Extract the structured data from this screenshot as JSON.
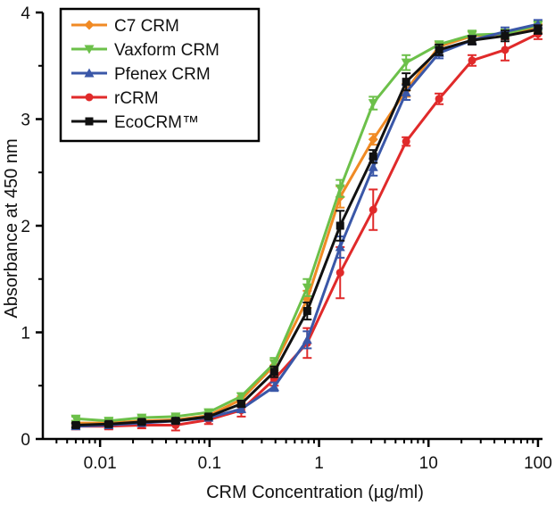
{
  "chart_data": {
    "type": "line",
    "xscale": "log",
    "xlabel": "CRM Concentration (µg/ml)",
    "ylabel": "Absorbance at 450 nm",
    "xlim": [
      0.003,
      110
    ],
    "ylim": [
      0,
      4
    ],
    "xticks": [
      {
        "value": 0.01,
        "label": "0.01"
      },
      {
        "value": 0.1,
        "label": "0.1"
      },
      {
        "value": 1,
        "label": "1"
      },
      {
        "value": 10,
        "label": "10"
      },
      {
        "value": 100,
        "label": "100"
      }
    ],
    "yticks": [
      {
        "value": 0,
        "label": "0"
      },
      {
        "value": 1,
        "label": "1"
      },
      {
        "value": 2,
        "label": "2"
      },
      {
        "value": 3,
        "label": "3"
      },
      {
        "value": 4,
        "label": "4"
      }
    ],
    "legend_position": "top-left",
    "x": [
      0.006,
      0.012,
      0.024,
      0.049,
      0.098,
      0.195,
      0.39,
      0.78,
      1.56,
      3.125,
      6.25,
      12.5,
      25,
      50,
      100
    ],
    "series": [
      {
        "name": "C7 CRM",
        "color": "#f08a24",
        "marker": "diamond",
        "values": [
          0.15,
          0.15,
          0.17,
          0.18,
          0.22,
          0.37,
          0.69,
          1.31,
          2.27,
          2.81,
          3.27,
          3.68,
          3.78,
          3.8,
          3.85
        ],
        "errors": [
          0.02,
          0.02,
          0.02,
          0.02,
          0.02,
          0.03,
          0.05,
          0.08,
          0.1,
          0.05,
          0.06,
          0.04,
          0.04,
          0.04,
          0.04
        ]
      },
      {
        "name": "Vaxform CRM",
        "color": "#6cc04a",
        "marker": "triangle-down",
        "values": [
          0.19,
          0.17,
          0.2,
          0.21,
          0.25,
          0.4,
          0.71,
          1.42,
          2.35,
          3.15,
          3.53,
          3.7,
          3.79,
          3.8,
          3.88
        ],
        "errors": [
          0.02,
          0.02,
          0.02,
          0.02,
          0.02,
          0.03,
          0.05,
          0.08,
          0.08,
          0.06,
          0.07,
          0.03,
          0.04,
          0.04,
          0.04
        ]
      },
      {
        "name": "Pfenex CRM",
        "color": "#3a57a8",
        "marker": "triangle-up",
        "values": [
          0.12,
          0.13,
          0.15,
          0.17,
          0.2,
          0.28,
          0.49,
          0.93,
          1.8,
          2.55,
          3.25,
          3.62,
          3.74,
          3.82,
          3.89
        ],
        "errors": [
          0.02,
          0.02,
          0.02,
          0.02,
          0.02,
          0.03,
          0.04,
          0.08,
          0.1,
          0.08,
          0.07,
          0.05,
          0.04,
          0.04,
          0.04
        ]
      },
      {
        "name": "rCRM",
        "color": "#e02a2a",
        "marker": "circle",
        "values": [
          0.12,
          0.12,
          0.13,
          0.13,
          0.18,
          0.27,
          0.56,
          0.9,
          1.56,
          2.15,
          2.79,
          3.19,
          3.55,
          3.65,
          3.8
        ],
        "errors": [
          0.03,
          0.03,
          0.03,
          0.05,
          0.04,
          0.06,
          0.06,
          0.14,
          0.24,
          0.19,
          0.04,
          0.05,
          0.05,
          0.1,
          0.05
        ]
      },
      {
        "name": "EcoCRM™",
        "color": "#111111",
        "marker": "square",
        "values": [
          0.13,
          0.14,
          0.16,
          0.17,
          0.21,
          0.33,
          0.63,
          1.2,
          2.0,
          2.65,
          3.35,
          3.65,
          3.74,
          3.78,
          3.84
        ],
        "errors": [
          0.02,
          0.02,
          0.02,
          0.02,
          0.02,
          0.03,
          0.05,
          0.08,
          0.14,
          0.06,
          0.08,
          0.05,
          0.04,
          0.05,
          0.04
        ]
      }
    ]
  }
}
